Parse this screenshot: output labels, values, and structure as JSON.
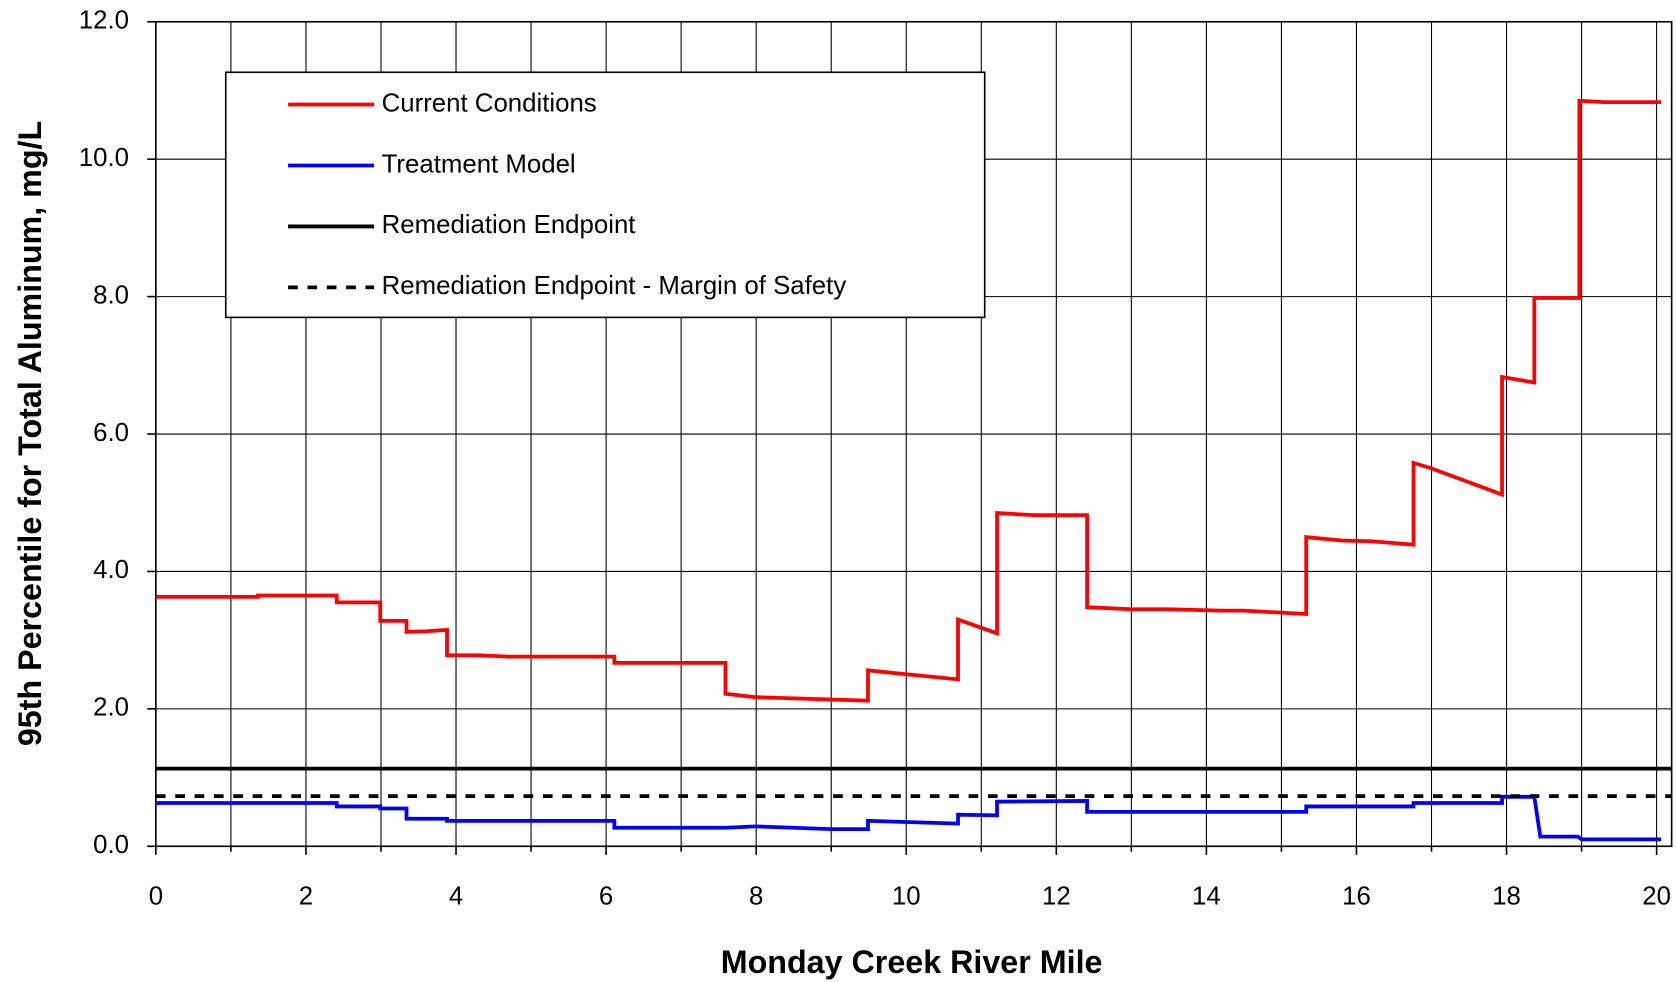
{
  "chart_data": {
    "type": "line",
    "xlabel": "Monday Creek River Mile",
    "ylabel": "95th Percentile for Total Aluminum, mg/L",
    "xlim": [
      0,
      20.2
    ],
    "ylim": [
      0,
      12
    ],
    "xticks": [
      0,
      2,
      4,
      6,
      8,
      10,
      12,
      14,
      16,
      18,
      20
    ],
    "x_minor_ticks": [
      1,
      3,
      5,
      7,
      9,
      11,
      13,
      15,
      17,
      19
    ],
    "yticks": [
      {
        "value": 0,
        "label": "0.0"
      },
      {
        "value": 2,
        "label": "2.0"
      },
      {
        "value": 4,
        "label": "4.0"
      },
      {
        "value": 6,
        "label": "6.0"
      },
      {
        "value": 8,
        "label": "8.0"
      },
      {
        "value": 10,
        "label": "10.0"
      },
      {
        "value": 12,
        "label": "12.0"
      }
    ],
    "grid": true,
    "legend": "upper-left",
    "series": [
      {
        "name": "Current Conditions",
        "color": "#ff0000",
        "style": "solid",
        "x": [
          0,
          1.36,
          1.36,
          2.41,
          2.41,
          2.99,
          2.99,
          3.34,
          3.34,
          3.6,
          3.88,
          3.88,
          4.3,
          4.7,
          6.11,
          6.11,
          7.59,
          7.59,
          8.0,
          9.49,
          9.49,
          10.69,
          10.69,
          11.21,
          11.21,
          11.7,
          12.41,
          12.41,
          13.0,
          13.5,
          14.2,
          14.5,
          15.33,
          15.33,
          15.8,
          16.2,
          16.76,
          16.76,
          17.0,
          17.94,
          17.94,
          18.37,
          18.37,
          18.97,
          18.97,
          19.3,
          20.06
        ],
        "values": [
          3.63,
          3.63,
          3.65,
          3.65,
          3.55,
          3.55,
          3.28,
          3.28,
          3.12,
          3.13,
          3.15,
          2.78,
          2.78,
          2.76,
          2.76,
          2.67,
          2.67,
          2.22,
          2.17,
          2.12,
          2.56,
          2.43,
          3.3,
          3.1,
          4.85,
          4.82,
          4.82,
          3.48,
          3.45,
          3.45,
          3.43,
          3.43,
          3.38,
          4.5,
          4.45,
          4.44,
          4.39,
          5.58,
          5.5,
          5.12,
          6.83,
          6.75,
          7.98,
          7.98,
          10.85,
          10.83,
          10.83
        ]
      },
      {
        "name": "Treatment Model",
        "color": "#0000ff",
        "style": "solid",
        "x": [
          0,
          2.41,
          2.41,
          2.99,
          2.99,
          3.34,
          3.34,
          3.88,
          3.88,
          6.11,
          6.11,
          7.59,
          8.0,
          9.0,
          9.49,
          9.49,
          10.69,
          10.69,
          11.21,
          11.21,
          12.41,
          12.41,
          15.33,
          15.33,
          16.76,
          16.76,
          17.94,
          17.94,
          18.37,
          18.45,
          18.95,
          19.0,
          20.06
        ],
        "values": [
          0.63,
          0.63,
          0.58,
          0.58,
          0.55,
          0.55,
          0.4,
          0.4,
          0.37,
          0.37,
          0.27,
          0.27,
          0.29,
          0.25,
          0.25,
          0.37,
          0.33,
          0.46,
          0.45,
          0.65,
          0.66,
          0.5,
          0.5,
          0.58,
          0.58,
          0.63,
          0.63,
          0.72,
          0.72,
          0.14,
          0.14,
          0.1,
          0.1
        ]
      },
      {
        "name": "Remediation Endpoint",
        "color": "#000000",
        "style": "solid",
        "x": [
          0,
          20.2
        ],
        "values": [
          1.13,
          1.13
        ]
      },
      {
        "name": "Remediation Endpoint - Margin of Safety",
        "color": "#000000",
        "style": "dashed",
        "x": [
          0,
          20.2
        ],
        "values": [
          0.73,
          0.73
        ]
      }
    ]
  }
}
